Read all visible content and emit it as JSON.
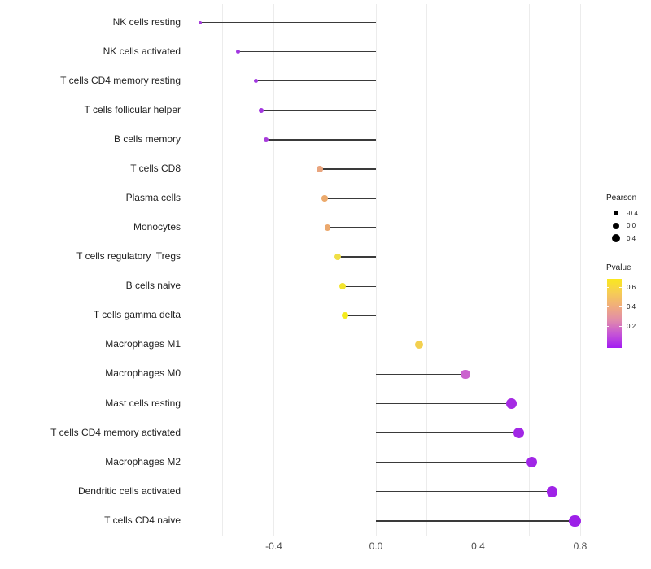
{
  "figure": {
    "background": "#FFFFFF",
    "grid_color": "#ECECEC",
    "stem_color": "#3A3A3A",
    "axis_text_color": "#4D4D4D",
    "category_text_color": "#1F1F1F",
    "legend_text_color": "#1A1A1A"
  },
  "chart_data": {
    "type": "scatter",
    "variant": "horizontal-lollipop",
    "title": "",
    "xlabel": "",
    "ylabel": "",
    "xlim": [
      -0.75,
      0.87
    ],
    "grid": "vertical gridlines every 0.2, no horizontal gridlines, white background",
    "gridline_values": [
      -0.6,
      -0.4,
      -0.2,
      0.0,
      0.2,
      0.4,
      0.6,
      0.8
    ],
    "xticks": [
      {
        "value": -0.4,
        "label": "-0.4"
      },
      {
        "value": 0.0,
        "label": "0.0"
      },
      {
        "value": 0.4,
        "label": "0.4"
      },
      {
        "value": 0.8,
        "label": "0.8"
      }
    ],
    "categories": [
      "NK cells resting",
      "NK cells activated",
      "T cells CD4 memory resting",
      "T cells follicular helper",
      "B cells memory",
      "T cells CD8",
      "Plasma cells",
      "Monocytes",
      "T cells regulatory  Tregs",
      "B cells naive",
      "T cells gamma delta",
      "Macrophages M1",
      "Macrophages M0",
      "Mast cells resting",
      "T cells CD4 memory activated",
      "Macrophages M2",
      "Dendritic cells activated",
      "T cells CD4 naive"
    ],
    "series": [
      {
        "name": "Pearson",
        "values": [
          -0.69,
          -0.54,
          -0.47,
          -0.45,
          -0.43,
          -0.22,
          -0.2,
          -0.19,
          -0.15,
          -0.13,
          -0.12,
          0.17,
          0.35,
          0.53,
          0.56,
          0.61,
          0.69,
          0.78
        ]
      }
    ],
    "pvalues_estimated_from_color": [
      0.1,
      0.11,
      0.12,
      0.13,
      0.14,
      0.44,
      0.45,
      0.45,
      0.6,
      0.63,
      0.66,
      0.55,
      0.28,
      0.07,
      0.06,
      0.05,
      0.03,
      0.02
    ],
    "point_colors": [
      "#A43CD9",
      "#A137E0",
      "#A137E0",
      "#A337DF",
      "#A83CDC",
      "#E9A57E",
      "#ECAA6C",
      "#EBA86D",
      "#F0DF46",
      "#F3E52F",
      "#F5EB1C",
      "#F3D04F",
      "#CB63CE",
      "#A52BE3",
      "#A127E5",
      "#A026E6",
      "#9F23E7",
      "#9D20E8"
    ],
    "legend": {
      "position": "right",
      "size_legend": {
        "title": "Pearson",
        "dot_color": "#000000",
        "entries": [
          {
            "label": "-0.4",
            "radius_px": 3.2
          },
          {
            "label": "0.0",
            "radius_px": 4.2
          },
          {
            "label": "0.4",
            "radius_px": 5.0
          }
        ]
      },
      "color_legend": {
        "title": "Pvalue",
        "tick_labels": [
          "0.6",
          "0.4",
          "0.2"
        ],
        "gradient_bottom_to_top": [
          "#A31CF2",
          "#C554D6",
          "#E18BAB",
          "#F0AC7D",
          "#F6CD55",
          "#FAE81E"
        ]
      }
    }
  }
}
